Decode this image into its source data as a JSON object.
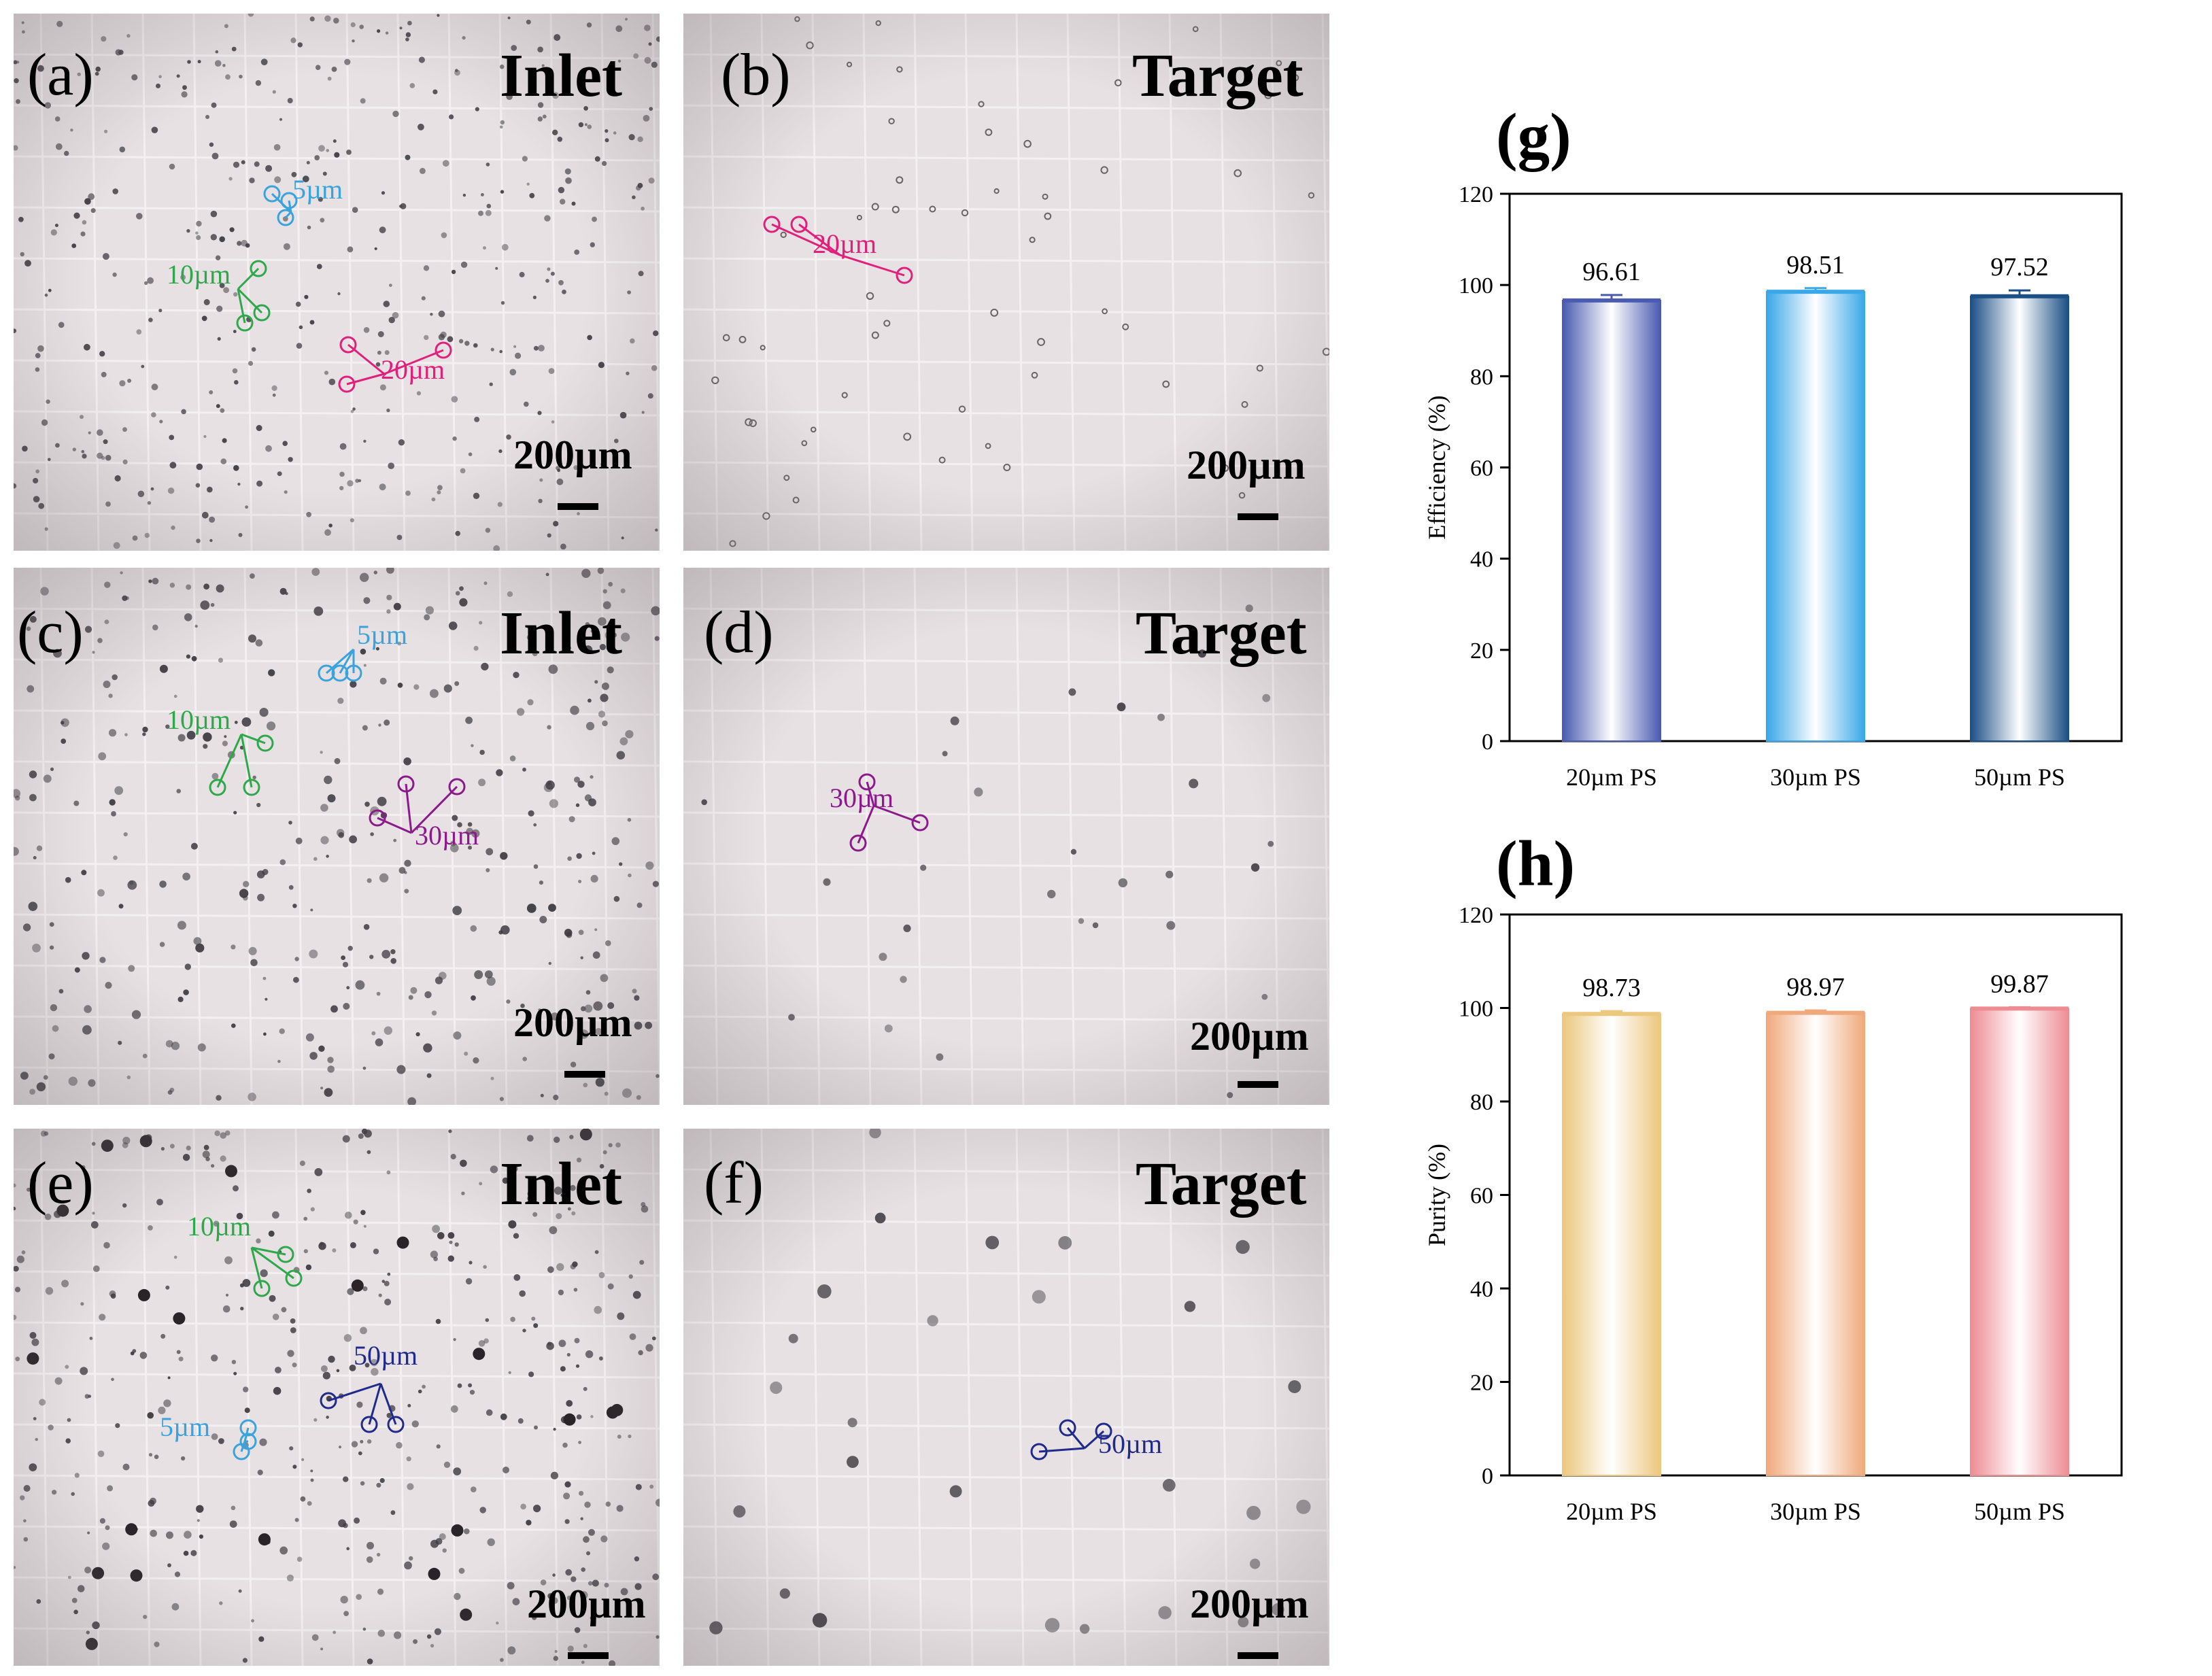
{
  "panels": [
    {
      "letter": "(a)",
      "title": "Inlet",
      "scale": "200µm",
      "annotations": [
        {
          "text": "5µm",
          "color": "#3aa3dc"
        },
        {
          "text": "10µm",
          "color": "#2ea84a"
        },
        {
          "text": "20µm",
          "color": "#e0207a"
        }
      ]
    },
    {
      "letter": "(b)",
      "title": "Target",
      "scale": "200µm",
      "annotations": [
        {
          "text": "20µm",
          "color": "#e0207a"
        }
      ]
    },
    {
      "letter": "(c)",
      "title": "Inlet",
      "scale": "200µm",
      "annotations": [
        {
          "text": "5µm",
          "color": "#3aa3dc"
        },
        {
          "text": "10µm",
          "color": "#2ea84a"
        },
        {
          "text": "30µm",
          "color": "#8b1a8b"
        }
      ]
    },
    {
      "letter": "(d)",
      "title": "Target",
      "scale": "200µm",
      "annotations": [
        {
          "text": "30µm",
          "color": "#8b1a8b"
        }
      ]
    },
    {
      "letter": "(e)",
      "title": "Inlet",
      "scale": "200µm",
      "annotations": [
        {
          "text": "10µm",
          "color": "#2ea84a"
        },
        {
          "text": "50µm",
          "color": "#1f2a8a"
        },
        {
          "text": "5µm",
          "color": "#3aa3dc"
        }
      ]
    },
    {
      "letter": "(f)",
      "title": "Target",
      "scale": "200µm",
      "annotations": [
        {
          "text": "50µm",
          "color": "#1f2a8a"
        }
      ]
    }
  ],
  "chart_data": [
    {
      "letter": "(g)",
      "type": "bar",
      "categories": [
        "20µm PS",
        "30µm PS",
        "50µm PS"
      ],
      "values": [
        96.61,
        98.51,
        97.52
      ],
      "value_labels": [
        "96.61",
        "98.51",
        "97.52"
      ],
      "errors": [
        1.2,
        0.8,
        1.3
      ],
      "ylabel": "Efficiency (%)",
      "ylim": [
        0,
        120
      ],
      "yticks": [
        "0",
        "20",
        "40",
        "60",
        "80",
        "100",
        "120"
      ],
      "bar_colors": [
        "#4a5bb0",
        "#3aa8e8",
        "#1c4f86"
      ]
    },
    {
      "letter": "(h)",
      "type": "bar",
      "categories": [
        "20µm PS",
        "30µm PS",
        "50µm PS"
      ],
      "values": [
        98.73,
        98.97,
        99.87
      ],
      "value_labels": [
        "98.73",
        "98.97",
        "99.87"
      ],
      "errors": [
        0.6,
        0.5,
        0.3
      ],
      "ylabel": "Purity (%)",
      "ylim": [
        0,
        120
      ],
      "yticks": [
        "0",
        "20",
        "40",
        "60",
        "80",
        "100",
        "120"
      ],
      "bar_colors": [
        "#ecc77e",
        "#f0a97c",
        "#ee8c94"
      ]
    }
  ]
}
